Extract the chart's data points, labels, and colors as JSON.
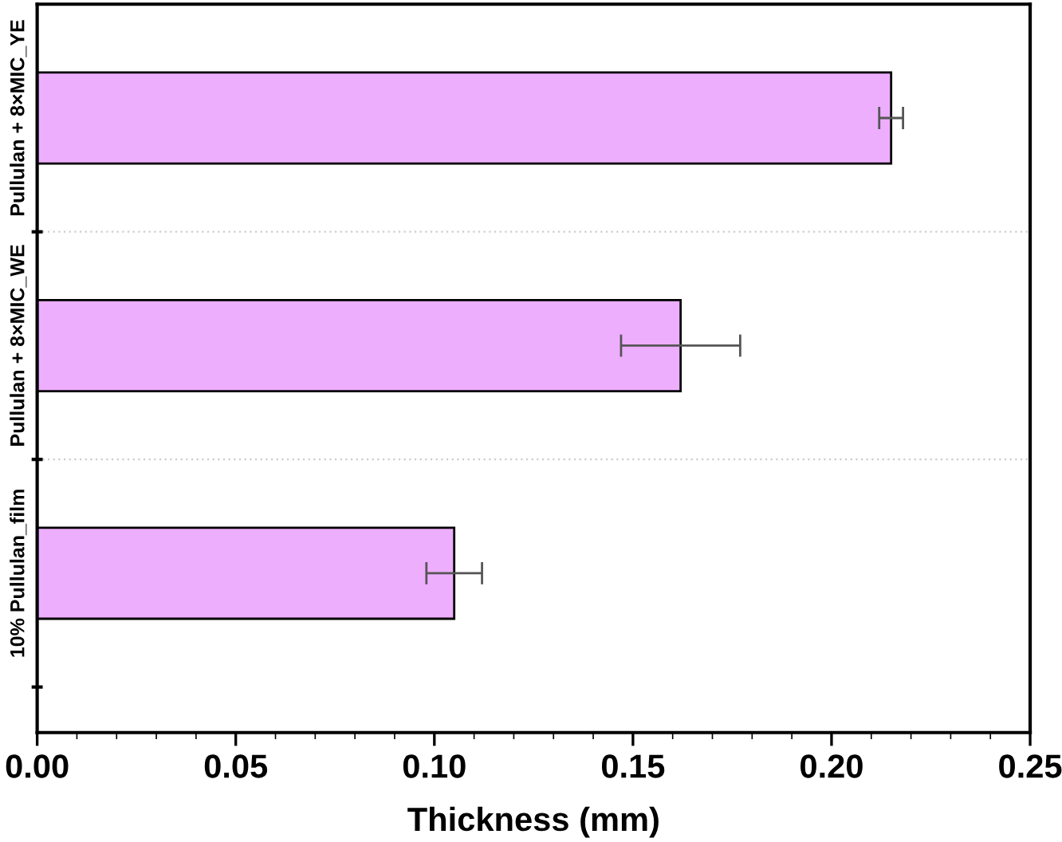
{
  "chart_data": {
    "type": "bar",
    "orientation": "horizontal",
    "xlabel": "Thickness (mm)",
    "categories": [
      "Pullulan + 8×MIC_YE",
      "Pullulan + 8×MIC_WE",
      "10% Pullulan_film"
    ],
    "values": [
      0.215,
      0.162,
      0.105
    ],
    "errors": [
      0.003,
      0.015,
      0.007
    ],
    "color": "#eeaefe",
    "xlim": [
      0,
      0.25
    ],
    "xticks": [
      {
        "value": 0,
        "label": "0.00"
      },
      0.05,
      {
        "value": 0.1,
        "label": "0.10"
      },
      0.15,
      {
        "value": 0.2,
        "label": "0.20"
      },
      0.25
    ],
    "grid": "y"
  }
}
